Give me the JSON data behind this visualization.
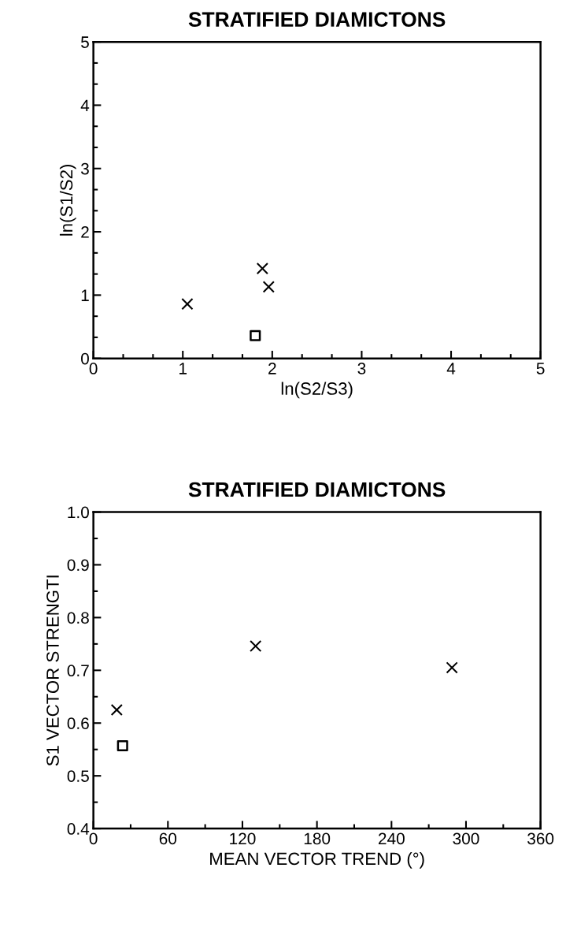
{
  "chart_data": [
    {
      "type": "scatter",
      "title": "STRATIFIED DIAMICTONS",
      "xlabel": "ln(S2/S3)",
      "ylabel": "ln(S1/S2)",
      "xlim": [
        0,
        5
      ],
      "ylim": [
        0,
        5
      ],
      "xticks": [
        0,
        1,
        2,
        3,
        4,
        5
      ],
      "yticks": [
        0,
        1,
        2,
        3,
        4,
        5
      ],
      "grid": false,
      "legend": false,
      "series": [
        {
          "color": "#000000",
          "marker": "cross",
          "x": [
            1.05,
            1.89,
            1.96
          ],
          "values": [
            0.86,
            1.42,
            1.13
          ]
        },
        {
          "color": "#000000",
          "marker": "square",
          "x": [
            1.81
          ],
          "values": [
            0.36
          ]
        }
      ]
    },
    {
      "type": "scatter",
      "title": "STRATIFIED DIAMICTONS",
      "xlabel": "MEAN VECTOR TREND (°)",
      "ylabel": "S1 VECTOR STRENGTI",
      "xlim": [
        0,
        360
      ],
      "ylim": [
        0.4,
        1.0
      ],
      "xticks": [
        0,
        60,
        120,
        180,
        240,
        300,
        360
      ],
      "yticks": [
        {
          "value": 0.4,
          "label": "0.4"
        },
        {
          "value": 0.5,
          "label": "0.5"
        },
        {
          "value": 0.6,
          "label": "0.6"
        },
        {
          "value": 0.7,
          "label": "0.7"
        },
        {
          "value": 0.8,
          "label": "0.8"
        },
        {
          "value": 0.9,
          "label": "0.9"
        },
        {
          "value": 1.0,
          "label": "1.0"
        }
      ],
      "grid": false,
      "legend": false,
      "series": [
        {
          "color": "#000000",
          "marker": "cross",
          "x": [
            18.8,
            130.6,
            288.7
          ],
          "values": [
            0.625,
            0.746,
            0.705
          ]
        },
        {
          "color": "#000000",
          "marker": "square",
          "x": [
            23.5
          ],
          "values": [
            0.557
          ]
        }
      ]
    }
  ]
}
